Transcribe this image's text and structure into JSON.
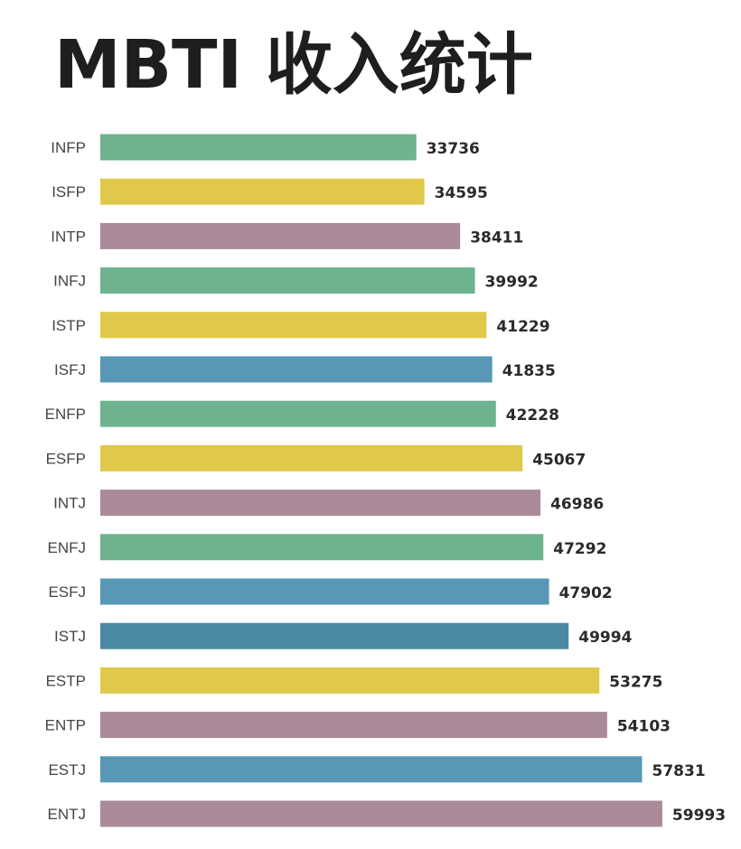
{
  "chart_data": {
    "type": "bar",
    "orientation": "horizontal",
    "title": "MBTI 收入统计",
    "xlabel": "",
    "ylabel": "",
    "grid": false,
    "xlim": [
      0,
      60000
    ],
    "categories": [
      "INFP",
      "ISFP",
      "INTP",
      "INFJ",
      "ISTP",
      "ISFJ",
      "ENFP",
      "ESFP",
      "INTJ",
      "ENFJ",
      "ESFJ",
      "ISTJ",
      "ESTP",
      "ENTP",
      "ESTJ",
      "ENTJ"
    ],
    "values": [
      33736,
      34595,
      38411,
      39992,
      41229,
      41835,
      42228,
      45067,
      46986,
      47292,
      47902,
      49994,
      53275,
      54103,
      57831,
      59993
    ],
    "value_labels": [
      "33736",
      "34595",
      "38411",
      "39992",
      "41229",
      "41835",
      "42228",
      "45067",
      "46986",
      "47292",
      "47902",
      "49994",
      "53275",
      "54103",
      "57831",
      "59993"
    ],
    "colors": [
      "#6db390",
      "#e0c84a",
      "#ab8a99",
      "#6db390",
      "#e0c84a",
      "#5898b4",
      "#6db390",
      "#e0c84a",
      "#ab8a99",
      "#6db390",
      "#5898b4",
      "#4a89a1",
      "#e0c84a",
      "#ab8a99",
      "#5898b4",
      "#ab8a99"
    ]
  }
}
